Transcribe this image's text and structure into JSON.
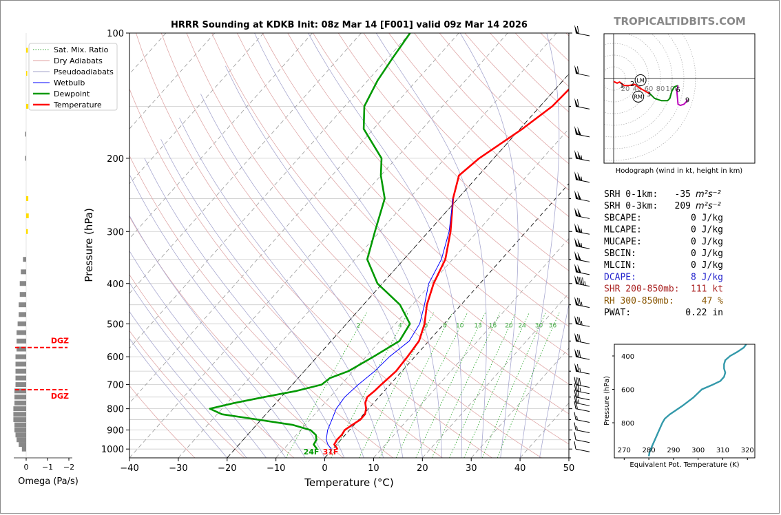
{
  "header": {
    "title": "HRRR Sounding at KDKB Init: 08z Mar 14 [F001] valid 09z Mar 14 2026",
    "brand": "TROPICALTIDBITS.COM"
  },
  "legend": {
    "items": [
      {
        "label": "Sat. Mix. Ratio",
        "color": "#2ca02c",
        "style": "dotted"
      },
      {
        "label": "Dry Adiabats",
        "color": "#e0a0a0",
        "style": "solid"
      },
      {
        "label": "Pseudoadiabats",
        "color": "#a0a0c8",
        "style": "solid"
      },
      {
        "label": "Wetbulb",
        "color": "#0000ff",
        "style": "solid"
      },
      {
        "label": "Dewpoint",
        "color": "#009900",
        "style": "thick"
      },
      {
        "label": "Temperature",
        "color": "#ff0000",
        "style": "thick"
      }
    ]
  },
  "chart_data": [
    {
      "type": "line",
      "name": "skewt",
      "xlabel": "Temperature (°C)",
      "ylabel": "Pressure (hPa)",
      "xlim": [
        -40,
        50
      ],
      "ylim": [
        1050,
        100
      ],
      "y_scale": "log",
      "x_ticks": [
        -40,
        -30,
        -20,
        -10,
        0,
        10,
        20,
        30,
        40,
        50
      ],
      "y_ticks": [
        100,
        200,
        300,
        400,
        500,
        600,
        700,
        800,
        900,
        1000
      ],
      "x_tick_labels": [
        "−40",
        "−30",
        "−20",
        "−10",
        "0",
        "10",
        "20",
        "30",
        "40",
        "50"
      ],
      "y_tick_labels": [
        "100",
        "200",
        "300",
        "400",
        "500",
        "600",
        "700",
        "800",
        "900",
        "1000"
      ],
      "mixing_ratio_labels": [
        "2",
        "4",
        "6",
        "8",
        "10",
        "13",
        "16",
        "20",
        "24",
        "30",
        "36"
      ],
      "mixing_ratio_values": [
        2,
        4,
        6,
        8,
        10,
        13,
        16,
        20,
        24,
        30,
        36
      ],
      "surface_labels": {
        "dewpoint": "24F",
        "temperature": "31F"
      },
      "series": [
        {
          "name": "Temperature",
          "color": "#ff0000",
          "points": [
            [
              1000,
              1.0
            ],
            [
              975,
              -0.5
            ],
            [
              950,
              -0.8
            ],
            [
              925,
              -0.7
            ],
            [
              900,
              -1.0
            ],
            [
              875,
              -0.4
            ],
            [
              850,
              0.3
            ],
            [
              825,
              0.3
            ],
            [
              800,
              -0.5
            ],
            [
              775,
              -1.7
            ],
            [
              750,
              -2.4
            ],
            [
              725,
              -2.0
            ],
            [
              700,
              -1.8
            ],
            [
              650,
              -1.2
            ],
            [
              600,
              -1.5
            ],
            [
              550,
              -2.0
            ],
            [
              500,
              -4.0
            ],
            [
              450,
              -7.0
            ],
            [
              400,
              -9.5
            ],
            [
              350,
              -11.5
            ],
            [
              300,
              -15.5
            ],
            [
              250,
              -21.0
            ],
            [
              220,
              -24.0
            ],
            [
              200,
              -23.0
            ],
            [
              170,
              -19.5
            ],
            [
              150,
              -17.5
            ],
            [
              130,
              -17.0
            ],
            [
              115,
              -15.5
            ],
            [
              100,
              -14.0
            ]
          ]
        },
        {
          "name": "Wetbulb",
          "color": "#0000ff",
          "points": [
            [
              1000,
              -0.3
            ],
            [
              975,
              -1.8
            ],
            [
              950,
              -3.0
            ],
            [
              900,
              -4.5
            ],
            [
              850,
              -5.5
            ],
            [
              800,
              -6.6
            ],
            [
              750,
              -7.0
            ],
            [
              700,
              -6.5
            ],
            [
              650,
              -5.6
            ],
            [
              600,
              -5.2
            ],
            [
              550,
              -4.0
            ],
            [
              500,
              -5.0
            ],
            [
              450,
              -7.5
            ],
            [
              400,
              -10.5
            ],
            [
              350,
              -12.3
            ],
            [
              300,
              -15.8
            ],
            [
              250,
              -21.0
            ]
          ]
        },
        {
          "name": "Dewpoint",
          "color": "#009900",
          "points": [
            [
              1000,
              -3.2
            ],
            [
              975,
              -4.7
            ],
            [
              950,
              -5.0
            ],
            [
              925,
              -6.0
            ],
            [
              900,
              -8.0
            ],
            [
              875,
              -12.5
            ],
            [
              850,
              -20.5
            ],
            [
              825,
              -29.0
            ],
            [
              800,
              -32.5
            ],
            [
              775,
              -28.5
            ],
            [
              750,
              -23.5
            ],
            [
              725,
              -18.0
            ],
            [
              700,
              -14.0
            ],
            [
              675,
              -13.5
            ],
            [
              650,
              -11.0
            ],
            [
              600,
              -8.5
            ],
            [
              550,
              -6.0
            ],
            [
              500,
              -7.0
            ],
            [
              450,
              -12.5
            ],
            [
              400,
              -21.0
            ],
            [
              350,
              -27.5
            ],
            [
              300,
              -31.0
            ],
            [
              250,
              -35.0
            ],
            [
              220,
              -40.0
            ],
            [
              200,
              -43.0
            ],
            [
              170,
              -52.0
            ],
            [
              150,
              -56.0
            ],
            [
              130,
              -58.0
            ],
            [
              115,
              -59.0
            ],
            [
              100,
              -60.0
            ]
          ]
        }
      ]
    },
    {
      "type": "bar",
      "name": "omega",
      "xlabel": "Omega (Pa/s)",
      "x_tick_labels": [
        "0",
        "−1",
        "−2"
      ],
      "x_ticks": [
        0,
        -1,
        -2
      ],
      "dgz_label": "DGZ",
      "dgz_bounds_hpa": [
        570,
        720
      ],
      "bars": [
        {
          "p": 1000,
          "v": -0.2,
          "c": "#888888"
        },
        {
          "p": 975,
          "v": -0.35,
          "c": "#888888"
        },
        {
          "p": 950,
          "v": -0.45,
          "c": "#888888"
        },
        {
          "p": 925,
          "v": -0.5,
          "c": "#888888"
        },
        {
          "p": 900,
          "v": -0.55,
          "c": "#888888"
        },
        {
          "p": 875,
          "v": -0.55,
          "c": "#888888"
        },
        {
          "p": 850,
          "v": -0.6,
          "c": "#888888"
        },
        {
          "p": 825,
          "v": -0.6,
          "c": "#888888"
        },
        {
          "p": 800,
          "v": -0.6,
          "c": "#888888"
        },
        {
          "p": 775,
          "v": -0.55,
          "c": "#888888"
        },
        {
          "p": 750,
          "v": -0.55,
          "c": "#888888"
        },
        {
          "p": 725,
          "v": -0.55,
          "c": "#888888"
        },
        {
          "p": 700,
          "v": -0.5,
          "c": "#888888"
        },
        {
          "p": 675,
          "v": -0.5,
          "c": "#888888"
        },
        {
          "p": 650,
          "v": -0.5,
          "c": "#888888"
        },
        {
          "p": 625,
          "v": -0.5,
          "c": "#888888"
        },
        {
          "p": 600,
          "v": -0.5,
          "c": "#888888"
        },
        {
          "p": 575,
          "v": -0.45,
          "c": "#888888"
        },
        {
          "p": 550,
          "v": -0.45,
          "c": "#888888"
        },
        {
          "p": 525,
          "v": -0.45,
          "c": "#888888"
        },
        {
          "p": 500,
          "v": -0.4,
          "c": "#888888"
        },
        {
          "p": 475,
          "v": -0.35,
          "c": "#888888"
        },
        {
          "p": 450,
          "v": -0.35,
          "c": "#888888"
        },
        {
          "p": 425,
          "v": -0.3,
          "c": "#888888"
        },
        {
          "p": 400,
          "v": -0.3,
          "c": "#888888"
        },
        {
          "p": 375,
          "v": -0.25,
          "c": "#888888"
        },
        {
          "p": 350,
          "v": -0.15,
          "c": "#888888"
        },
        {
          "p": 300,
          "v": 0.08,
          "c": "#ffdd00"
        },
        {
          "p": 275,
          "v": 0.12,
          "c": "#ffdd00"
        },
        {
          "p": 250,
          "v": 0.1,
          "c": "#ffdd00"
        },
        {
          "p": 200,
          "v": -0.05,
          "c": "#888888"
        },
        {
          "p": 175,
          "v": -0.05,
          "c": "#888888"
        },
        {
          "p": 150,
          "v": 0.1,
          "c": "#ffdd00"
        },
        {
          "p": 125,
          "v": 0.05,
          "c": "#ffdd00"
        },
        {
          "p": 110,
          "v": 0.08,
          "c": "#ffdd00"
        }
      ]
    },
    {
      "type": "line",
      "name": "hodograph",
      "xlabel": "Hodograph (wind in kt, height in km)",
      "ring_labels": [
        "20",
        "40",
        "60",
        "80",
        "100"
      ],
      "height_labels": [
        "1",
        "2",
        "3",
        "6",
        "9"
      ],
      "storm_motion_labels": [
        "LM",
        "RM"
      ],
      "segments": [
        {
          "color": "#ff0000",
          "points": [
            [
              0,
              -5
            ],
            [
              6,
              -8
            ],
            [
              10,
              -6
            ],
            [
              18,
              -12
            ],
            [
              26,
              -12
            ],
            [
              36,
              -10
            ],
            [
              44,
              -16
            ],
            [
              58,
              -24
            ],
            [
              62,
              -26
            ]
          ]
        },
        {
          "color": "#008800",
          "points": [
            [
              62,
              -26
            ],
            [
              70,
              -34
            ],
            [
              82,
              -38
            ],
            [
              92,
              -38
            ],
            [
              96,
              -34
            ],
            [
              100,
              -20
            ],
            [
              104,
              -14
            ],
            [
              110,
              -12
            ]
          ]
        },
        {
          "color": "#bb00bb",
          "points": [
            [
              110,
              -12
            ],
            [
              108,
              -22
            ],
            [
              110,
              -44
            ],
            [
              114,
              -46
            ],
            [
              120,
              -44
            ],
            [
              124,
              -40
            ],
            [
              126,
              -36
            ]
          ]
        }
      ],
      "height_points": [
        {
          "label": "1",
          "u": 14,
          "v": -11
        },
        {
          "label": "2",
          "u": 32,
          "v": -8
        },
        {
          "label": "3",
          "u": 60,
          "v": -26
        },
        {
          "label": "6",
          "u": 110,
          "v": -18
        },
        {
          "label": "9",
          "u": 126,
          "v": -36
        }
      ],
      "storm_motion_points": [
        {
          "label": "LM",
          "u": 46,
          "v": -3
        },
        {
          "label": "RM",
          "u": 42,
          "v": -31
        }
      ]
    },
    {
      "type": "line",
      "name": "theta_e",
      "xlabel": "Equivalent Pot. Temperature (K)",
      "ylabel": "Pressure (hPa)",
      "x_ticks": [
        270,
        280,
        290,
        300,
        310,
        320
      ],
      "x_tick_labels": [
        "270",
        "280",
        "290",
        "300",
        "310",
        "320"
      ],
      "y_ticks": [
        400,
        600,
        800
      ],
      "y_tick_labels": [
        "400",
        "600",
        "800"
      ],
      "series": [
        {
          "color": "#3399aa",
          "points": [
            [
              1000,
              280.0
            ],
            [
              975,
              280.3
            ],
            [
              950,
              281.0
            ],
            [
              900,
              282.5
            ],
            [
              850,
              284.0
            ],
            [
              800,
              285.5
            ],
            [
              775,
              286.5
            ],
            [
              750,
              288.5
            ],
            [
              700,
              293.5
            ],
            [
              650,
              298.0
            ],
            [
              600,
              301.5
            ],
            [
              575,
              305.5
            ],
            [
              550,
              309.0
            ],
            [
              525,
              310.5
            ],
            [
              500,
              311.0
            ],
            [
              475,
              310.5
            ],
            [
              450,
              310.5
            ],
            [
              425,
              311.0
            ],
            [
              400,
              313.0
            ],
            [
              375,
              316.0
            ],
            [
              350,
              318.5
            ],
            [
              330,
              319.5
            ]
          ]
        }
      ]
    }
  ],
  "indices": [
    {
      "label": "SRH 0-1km:",
      "value": "-35",
      "unit": "m²s⁻²",
      "color": "#000000"
    },
    {
      "label": "SRH 0-3km:",
      "value": "209",
      "unit": "m²s⁻²",
      "color": "#000000"
    },
    {
      "label": "SBCAPE:",
      "value": "0 J/kg",
      "unit": "",
      "color": "#000000"
    },
    {
      "label": "MLCAPE:",
      "value": "0 J/kg",
      "unit": "",
      "color": "#000000"
    },
    {
      "label": "MUCAPE:",
      "value": "0 J/kg",
      "unit": "",
      "color": "#000000"
    },
    {
      "label": "SBCIN:",
      "value": "0 J/kg",
      "unit": "",
      "color": "#000000"
    },
    {
      "label": "MLCIN:",
      "value": "0 J/kg",
      "unit": "",
      "color": "#000000"
    },
    {
      "label": "DCAPE:",
      "value": "8 J/kg",
      "unit": "",
      "color": "#2222cc"
    },
    {
      "label": "SHR 200-850mb:",
      "value": "111 kt",
      "unit": "",
      "color": "#aa2222"
    },
    {
      "label": "RH 300-850mb:",
      "value": "47 %",
      "unit": "",
      "color": "#885500"
    },
    {
      "label": "PWAT:",
      "value": "0.22 in",
      "unit": "",
      "color": "#000000"
    }
  ],
  "wind_barbs": [
    {
      "p": 100,
      "kt": 60
    },
    {
      "p": 125,
      "kt": 60
    },
    {
      "p": 150,
      "kt": 60
    },
    {
      "p": 175,
      "kt": 100
    },
    {
      "p": 200,
      "kt": 105
    },
    {
      "p": 225,
      "kt": 105
    },
    {
      "p": 250,
      "kt": 100
    },
    {
      "p": 275,
      "kt": 100
    },
    {
      "p": 300,
      "kt": 105
    },
    {
      "p": 325,
      "kt": 105
    },
    {
      "p": 350,
      "kt": 100
    },
    {
      "p": 375,
      "kt": 100
    },
    {
      "p": 400,
      "kt": 95
    },
    {
      "p": 450,
      "kt": 75
    },
    {
      "p": 500,
      "kt": 75
    },
    {
      "p": 550,
      "kt": 70
    },
    {
      "p": 600,
      "kt": 70
    },
    {
      "p": 650,
      "kt": 65
    },
    {
      "p": 700,
      "kt": 40
    },
    {
      "p": 725,
      "kt": 35
    },
    {
      "p": 750,
      "kt": 30
    },
    {
      "p": 775,
      "kt": 25
    },
    {
      "p": 800,
      "kt": 20
    },
    {
      "p": 850,
      "kt": 15
    },
    {
      "p": 900,
      "kt": 15
    },
    {
      "p": 950,
      "kt": 10
    },
    {
      "p": 1000,
      "kt": 10
    }
  ]
}
